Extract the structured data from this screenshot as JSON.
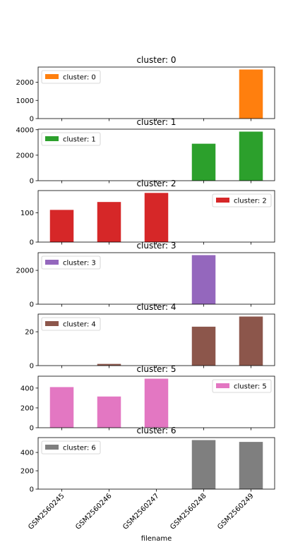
{
  "chart_data": {
    "type": "bar",
    "xlabel": "filename",
    "categories": [
      "GSM2560245",
      "GSM2560246",
      "GSM2560247",
      "GSM2560248",
      "GSM2560249"
    ],
    "panels": [
      {
        "title": "cluster: 0",
        "legend": "cluster: 0",
        "legend_position": "top-left",
        "color": "#ff7f0e",
        "values": [
          0,
          0,
          0,
          0,
          2700
        ],
        "ylim": [
          0,
          2835
        ],
        "yticks": [
          0,
          1000,
          2000
        ]
      },
      {
        "title": "cluster: 1",
        "legend": "cluster: 1",
        "legend_position": "top-left",
        "color": "#2ca02c",
        "values": [
          0,
          0,
          0,
          2900,
          3850
        ],
        "ylim": [
          0,
          4042
        ],
        "yticks": [
          0,
          2000,
          4000
        ]
      },
      {
        "title": "cluster: 2",
        "legend": "cluster: 2",
        "legend_position": "top-right",
        "color": "#d62728",
        "values": [
          110,
          137,
          168,
          0,
          0
        ],
        "ylim": [
          0,
          176
        ],
        "yticks": [
          0,
          100
        ]
      },
      {
        "title": "cluster: 3",
        "legend": "cluster: 3",
        "legend_position": "top-left",
        "color": "#9467bd",
        "values": [
          0,
          0,
          0,
          2900,
          0
        ],
        "ylim": [
          0,
          3045
        ],
        "yticks": [
          0,
          2000
        ]
      },
      {
        "title": "cluster: 4",
        "legend": "cluster: 4",
        "legend_position": "top-left",
        "color": "#8c564b",
        "values": [
          0,
          1,
          0,
          23,
          29
        ],
        "ylim": [
          0,
          30.45
        ],
        "yticks": [
          0,
          20
        ]
      },
      {
        "title": "cluster: 5",
        "legend": "cluster: 5",
        "legend_position": "top-right",
        "color": "#e377c2",
        "values": [
          410,
          315,
          495,
          0,
          0
        ],
        "ylim": [
          0,
          520
        ],
        "yticks": [
          0,
          200,
          400
        ]
      },
      {
        "title": "cluster: 6",
        "legend": "cluster: 6",
        "legend_position": "top-left",
        "color": "#7f7f7f",
        "values": [
          0,
          0,
          0,
          535,
          515
        ],
        "ylim": [
          0,
          562
        ],
        "yticks": [
          0,
          200,
          400
        ]
      }
    ]
  }
}
